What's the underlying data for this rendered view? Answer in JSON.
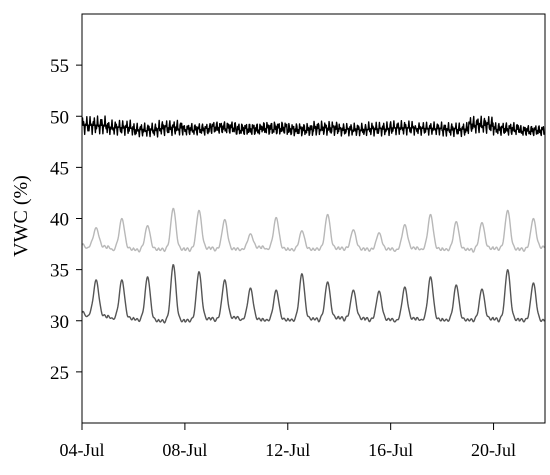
{
  "chart_data": {
    "type": "line",
    "title": "",
    "xlabel": "",
    "ylabel": "VWC (%)",
    "ylim": [
      20,
      60
    ],
    "xlim": [
      "2013-07-04",
      "2013-07-22"
    ],
    "grid": false,
    "legend": "none",
    "x_ticks": [
      {
        "date": "2013-07-04",
        "label": "04-Jul"
      },
      {
        "date": "2013-07-08",
        "label": "08-Jul"
      },
      {
        "date": "2013-07-12",
        "label": "12-Jul"
      },
      {
        "date": "2013-07-16",
        "label": "16-Jul"
      },
      {
        "date": "2013-07-20",
        "label": "20-Jul"
      }
    ],
    "y_ticks": [
      25,
      30,
      35,
      40,
      45,
      50,
      55
    ],
    "daily_dates": [
      "2013-07-04",
      "2013-07-05",
      "2013-07-06",
      "2013-07-07",
      "2013-07-08",
      "2013-07-09",
      "2013-07-10",
      "2013-07-11",
      "2013-07-12",
      "2013-07-13",
      "2013-07-14",
      "2013-07-15",
      "2013-07-16",
      "2013-07-17",
      "2013-07-18",
      "2013-07-19",
      "2013-07-20",
      "2013-07-21",
      "2013-07-22"
    ],
    "series": [
      {
        "color": "#000000",
        "values": [
          49.4,
          49.2,
          48.8,
          49.0,
          48.9,
          49.1,
          48.8,
          49.0,
          48.9,
          49.0,
          48.8,
          48.9,
          49.0,
          48.9,
          48.7,
          49.3,
          48.9,
          48.6,
          49.0
        ],
        "min": [
          48.1,
          48.0,
          47.9,
          48.0,
          48.0,
          48.1,
          48.0,
          48.0,
          47.9,
          48.0,
          48.0,
          48.0,
          48.1,
          48.1,
          48.0,
          48.2,
          48.0,
          48.0,
          48.1
        ],
        "max": [
          49.9,
          49.5,
          49.3,
          49.6,
          49.3,
          49.5,
          49.4,
          49.5,
          49.3,
          49.5,
          49.3,
          49.4,
          49.5,
          49.4,
          49.4,
          50.0,
          49.4,
          49.2,
          49.6
        ]
      },
      {
        "color": "#b8b8b8",
        "values": [
          37.4,
          37.2,
          37.0,
          37.0,
          37.0,
          37.1,
          37.0,
          37.2,
          37.0,
          37.0,
          37.1,
          37.0,
          37.0,
          37.1,
          37.0,
          37.0,
          37.1,
          37.0,
          37.2
        ],
        "min": [
          37.0,
          36.8,
          36.8,
          36.9,
          36.9,
          36.9,
          36.9,
          36.9,
          36.9,
          37.0,
          37.0,
          36.9,
          36.8,
          36.9,
          36.9,
          36.8,
          37.0,
          36.9,
          37.0
        ],
        "max": [
          39.1,
          40.0,
          39.3,
          41.0,
          40.8,
          39.9,
          38.5,
          40.1,
          38.8,
          40.4,
          38.9,
          38.6,
          39.4,
          40.4,
          39.7,
          39.6,
          40.8,
          40.0,
          39.0
        ]
      },
      {
        "color": "#555555",
        "values": [
          30.8,
          30.4,
          30.2,
          30.0,
          30.0,
          30.2,
          30.3,
          30.1,
          30.1,
          30.2,
          30.3,
          30.2,
          30.1,
          30.2,
          30.1,
          30.1,
          30.2,
          30.1,
          30.0
        ],
        "min": [
          30.3,
          30.1,
          30.0,
          29.9,
          30.0,
          30.0,
          30.0,
          30.0,
          30.0,
          30.0,
          30.1,
          30.0,
          29.9,
          30.0,
          30.0,
          30.0,
          30.0,
          30.0,
          29.9
        ],
        "max": [
          34.0,
          34.0,
          34.3,
          35.5,
          34.8,
          34.0,
          33.2,
          33.0,
          34.6,
          33.8,
          33.0,
          32.9,
          33.3,
          34.3,
          33.5,
          33.1,
          35.0,
          33.7,
          33.1
        ]
      }
    ]
  }
}
